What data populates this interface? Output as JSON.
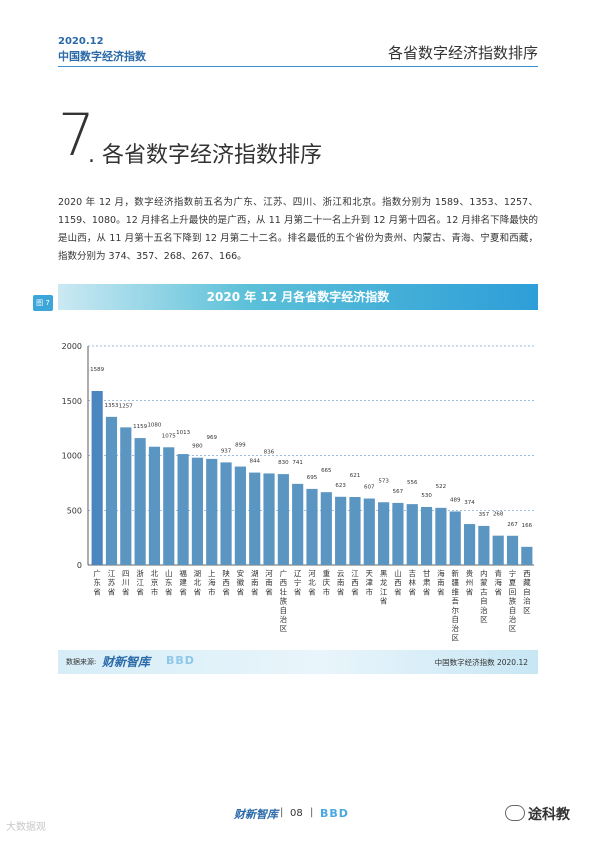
{
  "header": {
    "year": "2020.12",
    "report_name": "中国数字经济指数",
    "section_title_right": "各省数字经济指数排序"
  },
  "section": {
    "number": "7",
    "title": ". 各省数字经济指数排序"
  },
  "paragraph": "2020 年 12 月，数字经济指数前五名为广东、江苏、四川、浙江和北京。指数分别为 1589、1353、1257、1159、1080。12 月排名上升最快的是广西，从 11 月第二十一名上升到 12 月第十四名。12 月排名下降最快的是山西，从 11 月第十五名下降到 12 月第二十二名。排名最低的五个省份为贵州、内蒙古、青海、宁夏和西藏，指数分别为 374、357、268、267、166。",
  "figure_label": "图 7",
  "chart_data": {
    "type": "bar",
    "title": "2020 年 12 月各省数字经济指数",
    "categories": [
      "广东省",
      "江苏省",
      "四川省",
      "浙江省",
      "北京市",
      "山东省",
      "福建省",
      "湖北省",
      "上海市",
      "陕西省",
      "安徽省",
      "湖南省",
      "河南省",
      "广西壮族自治区",
      "辽宁省",
      "河北省",
      "重庆市",
      "云南省",
      "江西省",
      "天津市",
      "黑龙江省",
      "山西省",
      "吉林省",
      "甘肃省",
      "海南省",
      "新疆维吾尔自治区",
      "贵州省",
      "内蒙古自治区",
      "青海省",
      "宁夏回族自治区",
      "西藏自治区"
    ],
    "values": [
      1589,
      1353,
      1257,
      1159,
      1080,
      1075,
      1013,
      980,
      969,
      937,
      899,
      844,
      836,
      830,
      741,
      695,
      665,
      623,
      621,
      607,
      573,
      567,
      556,
      530,
      522,
      489,
      374,
      357,
      268,
      267,
      166
    ],
    "yticks": [
      0,
      500,
      1000,
      1500,
      2000
    ],
    "ylim": [
      0,
      2000
    ],
    "bar_color": "#5b95c2",
    "first_bar_color": "#4a86bf",
    "grid": "dashed"
  },
  "source": {
    "label": "数据来源:",
    "logo1": "财新智库",
    "logo2": "BBD",
    "right_text": "中国数字经济指数 2020.12"
  },
  "footer": {
    "logo1": "财新智库",
    "sep": "|",
    "page": "08",
    "logo2": "BBD"
  },
  "watermarks": {
    "left": "大数据观",
    "right": "途科教"
  }
}
